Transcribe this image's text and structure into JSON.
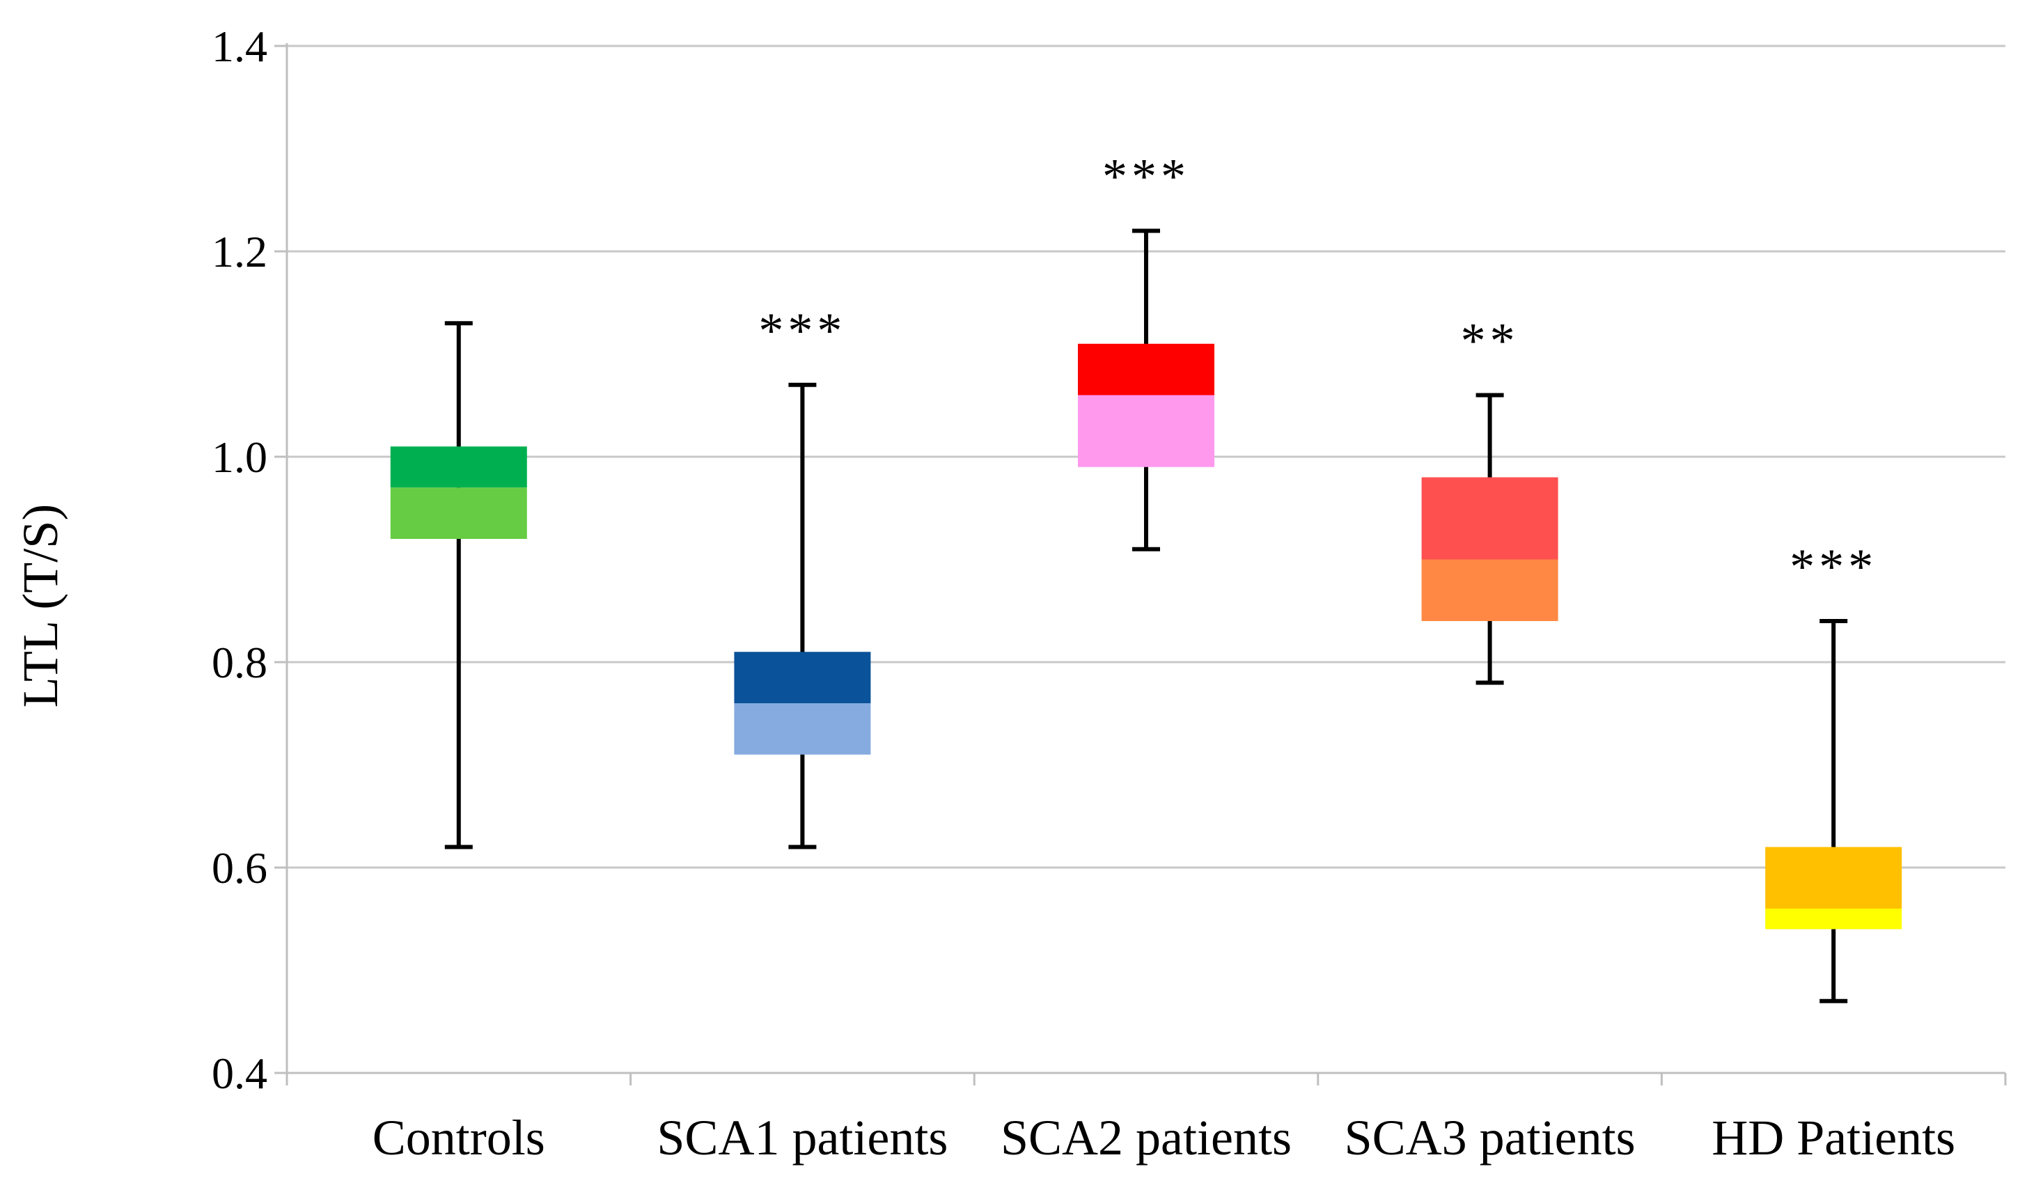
{
  "chart_data": {
    "type": "box",
    "title": "",
    "xlabel": "",
    "ylabel": "LTL (T/S)",
    "ylim": [
      0.4,
      1.4
    ],
    "yticks": [
      0.4,
      0.6,
      0.8,
      1.0,
      1.2,
      1.4
    ],
    "ytick_labels": [
      "0.4",
      "0.6",
      "0.8",
      "1.0",
      "1.2",
      "1.4"
    ],
    "grid": true,
    "categories": [
      "Controls",
      "SCA1 patients",
      "SCA2 patients",
      "SCA3 patients",
      "HD Patients"
    ],
    "boxes": [
      {
        "name": "Controls",
        "min": 0.62,
        "q1": 0.92,
        "median": 0.97,
        "q3": 1.01,
        "max": 1.13,
        "upper_color": "#00b050",
        "lower_color": "#66cc44",
        "significance": ""
      },
      {
        "name": "SCA1 patients",
        "min": 0.62,
        "q1": 0.71,
        "median": 0.76,
        "q3": 0.81,
        "max": 1.07,
        "upper_color": "#0a5299",
        "lower_color": "#85abe0",
        "significance": "***"
      },
      {
        "name": "SCA2 patients",
        "min": 0.91,
        "q1": 0.99,
        "median": 1.06,
        "q3": 1.11,
        "max": 1.22,
        "upper_color": "#ff0000",
        "lower_color": "#ff99ee",
        "significance": "***"
      },
      {
        "name": "SCA3 patients",
        "min": 0.78,
        "q1": 0.84,
        "median": 0.9,
        "q3": 0.98,
        "max": 1.06,
        "upper_color": "#ff5050",
        "lower_color": "#ff8844",
        "significance": "**"
      },
      {
        "name": "HD Patients",
        "min": 0.47,
        "q1": 0.54,
        "median": 0.56,
        "q3": 0.62,
        "max": 0.84,
        "upper_color": "#ffc000",
        "lower_color": "#ffff00",
        "significance": "***"
      }
    ]
  }
}
